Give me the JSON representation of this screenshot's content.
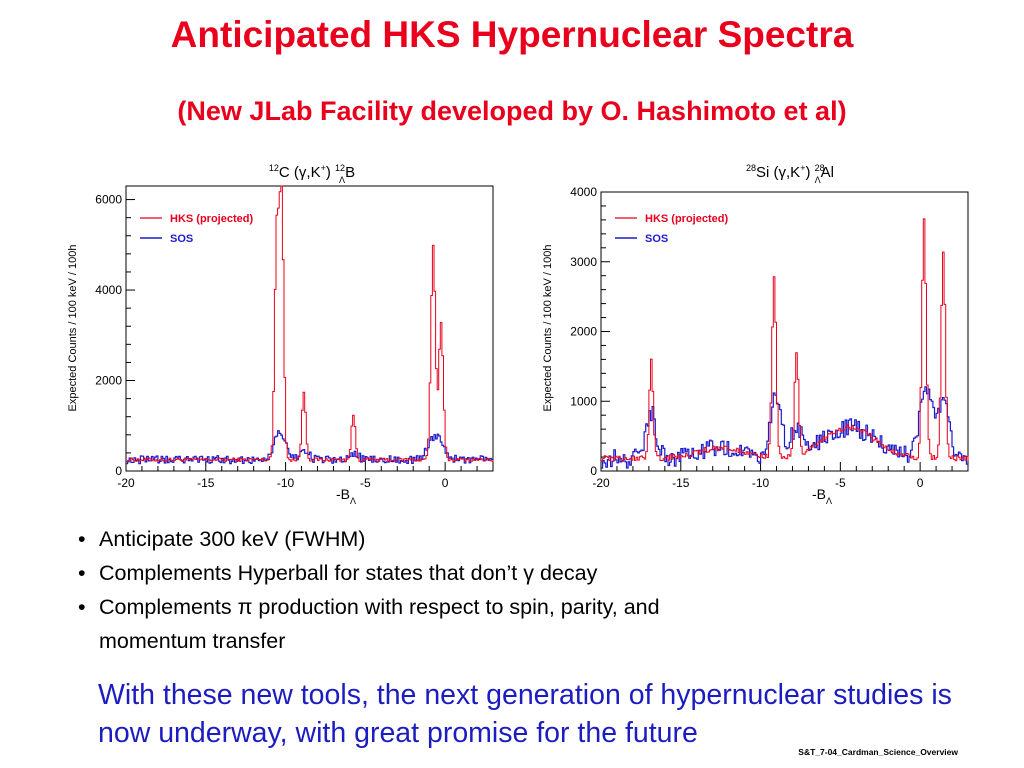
{
  "title": "Anticipated HKS Hypernuclear Spectra",
  "subtitle": "(New JLab Facility developed by O. Hashimoto et al)",
  "chart_data": [
    {
      "type": "line",
      "title": "12C (γ,K+) 12ΛB",
      "xlabel": "-BΛ",
      "ylabel": "Expected Counts / 100 keV / 100h",
      "xlim": [
        -20,
        3
      ],
      "ylim": [
        0,
        6300
      ],
      "xticks": [
        -20,
        -15,
        -10,
        -5,
        0
      ],
      "yticks": [
        0,
        2000,
        4000,
        6000
      ],
      "legend_position": "top-left",
      "series": [
        {
          "name": "HKS (projected)",
          "color": "#e8001c",
          "baseline": 250,
          "noise": 40,
          "peaks": [
            [
              -10.6,
              5000,
              0.13
            ],
            [
              -10.3,
              5900,
              0.13
            ],
            [
              -8.9,
              1500,
              0.12
            ],
            [
              -5.8,
              1000,
              0.12
            ],
            [
              -0.8,
              4700,
              0.14
            ],
            [
              -0.3,
              3000,
              0.14
            ]
          ]
        },
        {
          "name": "SOS",
          "color": "#1c1ccc",
          "baseline": 250,
          "noise": 90,
          "peaks": [
            [
              -10.4,
              600,
              0.35
            ],
            [
              -8.9,
              200,
              0.3
            ],
            [
              -5.8,
              130,
              0.3
            ],
            [
              -0.6,
              550,
              0.45
            ]
          ]
        }
      ]
    },
    {
      "type": "line",
      "title": "28Si (γ,K+) 28ΛAl",
      "xlabel": "-BΛ",
      "ylabel": "Expected Counts / 100 keV / 100h",
      "xlim": [
        -20,
        3
      ],
      "ylim": [
        0,
        4000
      ],
      "xticks": [
        -20,
        -15,
        -10,
        -5,
        0
      ],
      "yticks": [
        0,
        1000,
        2000,
        3000,
        4000
      ],
      "legend_position": "top-left",
      "series": [
        {
          "name": "HKS (projected)",
          "color": "#e8001c",
          "baseline": 180,
          "noise": 40,
          "humps": [
            [
              -12.5,
              150,
              1.5
            ],
            [
              -4.5,
              450,
              1.6
            ]
          ],
          "peaks": [
            [
              -16.9,
              1400,
              0.12
            ],
            [
              -9.2,
              2550,
              0.13
            ],
            [
              -7.8,
              1500,
              0.12
            ],
            [
              0.2,
              3400,
              0.13
            ],
            [
              1.4,
              2950,
              0.13
            ]
          ]
        },
        {
          "name": "SOS",
          "color": "#1c1ccc",
          "baseline": 180,
          "noise": 140,
          "humps": [
            [
              -12.5,
              150,
              1.5
            ],
            [
              -4.5,
              450,
              1.6
            ]
          ],
          "peaks": [
            [
              -16.9,
              650,
              0.3
            ],
            [
              -9.1,
              900,
              0.35
            ],
            [
              -7.8,
              450,
              0.3
            ],
            [
              0.3,
              900,
              0.4
            ],
            [
              1.4,
              800,
              0.4
            ]
          ]
        }
      ]
    }
  ],
  "bullets": [
    "Anticipate 300 keV (FWHM)",
    "Complements Hyperball for states that don’t γ decay",
    "Complements π production with respect to spin, parity, and",
    "momentum transfer"
  ],
  "bullet_mark": "•",
  "conclusion": "With these new tools, the next generation of hypernuclear studies is now underway, with great promise for the future",
  "footer": "S&T_7-04_Cardman_Science_Overview"
}
